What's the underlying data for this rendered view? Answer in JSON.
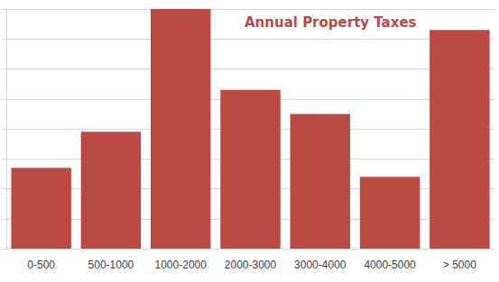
{
  "chart_data": {
    "type": "bar",
    "title": "Annual Property Taxes",
    "categories": [
      "0-500",
      "500-1000",
      "1000-2000",
      "2000-3000",
      "3000-4000",
      "4000-5000",
      "> 5000"
    ],
    "values": [
      2.7,
      3.9,
      8,
      5.3,
      4.5,
      2.4,
      7.3
    ],
    "color": "#b94a44",
    "ylim": [
      0,
      8
    ],
    "yticks": [
      0,
      1,
      2,
      3,
      4,
      5,
      6,
      7,
      8
    ],
    "grid": true,
    "tick_labels": "x"
  }
}
